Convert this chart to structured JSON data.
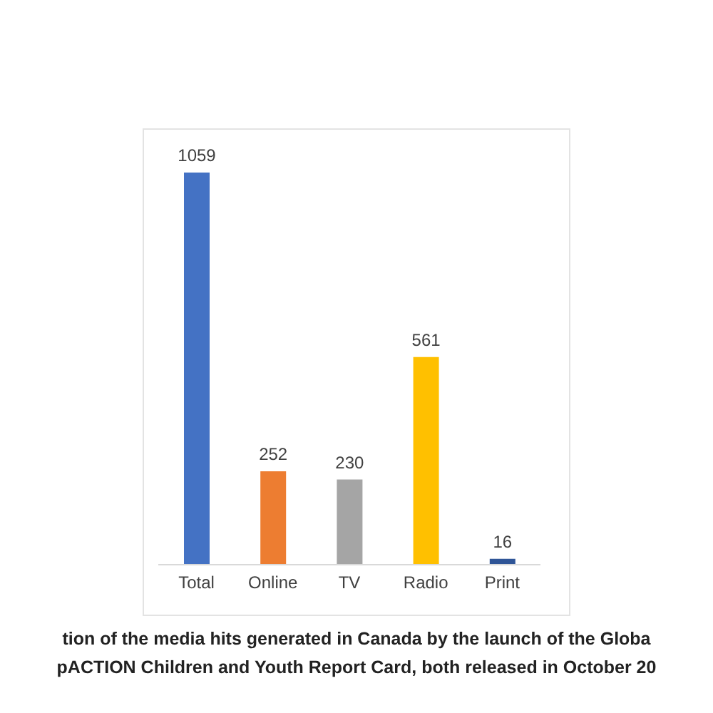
{
  "chart_data": {
    "type": "bar",
    "categories": [
      "Total",
      "Online",
      "TV",
      "Radio",
      "Print"
    ],
    "values": [
      1059,
      252,
      230,
      561,
      16
    ],
    "colors": [
      "#4472c4",
      "#ed7d31",
      "#a5a5a5",
      "#ffc000",
      "#2f5597"
    ],
    "data_labels": true,
    "grid": false,
    "legend": false,
    "annotations": [
      "tion of the media hits generated in Canada by the launch of the Globa",
      "pACTION Children and Youth Report Card, both released in October 20"
    ]
  }
}
